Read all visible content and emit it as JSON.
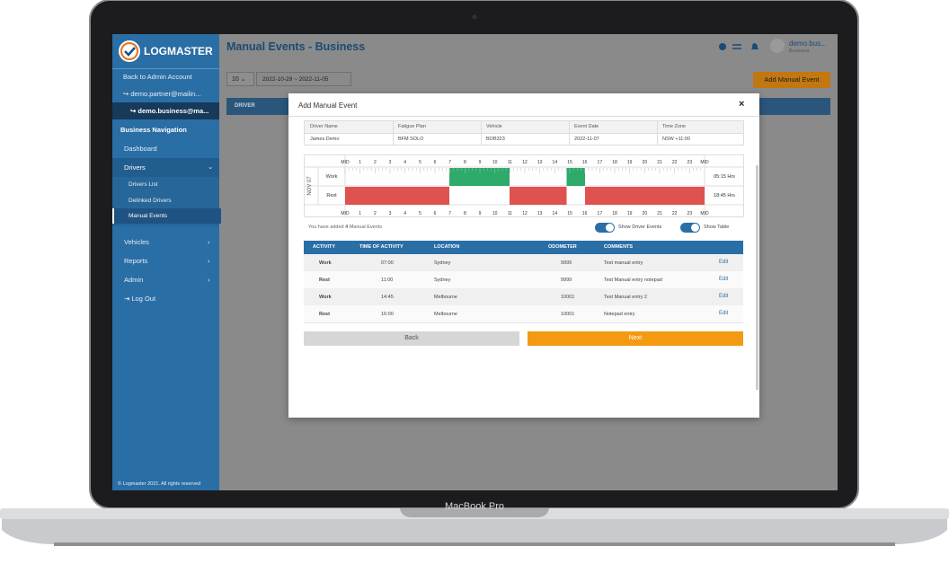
{
  "sidebar": {
    "logo": "LOGMASTER",
    "back": "Back to Admin Account",
    "accounts": [
      "demo.partner@mailin...",
      "demo.business@ma..."
    ],
    "section": "Business Navigation",
    "items": [
      "Dashboard",
      "Drivers",
      "Vehicles",
      "Reports",
      "Admin",
      "Log Out"
    ],
    "submenu": [
      "Drivers List",
      "Delinked Drivers",
      "Manual Events"
    ],
    "footer": "© Logmaster 2021. All rights reserved"
  },
  "header": {
    "title": "Manual Events - Business",
    "user": "demo.bus...",
    "role": "Business"
  },
  "toolbar": {
    "page_size": "10",
    "date_range": "2022-10-29 ~ 2022-11-05",
    "add_button": "Add Manual Event",
    "column": "DRIVER"
  },
  "modal": {
    "title": "Add Manual Event",
    "info": {
      "headers": [
        "Driver Name",
        "Fatigue Plan",
        "Vehicle",
        "Event Date",
        "Time Zone"
      ],
      "values": [
        "James Demo",
        "BFM SOLO",
        "BOB323",
        "2022-11-07",
        "NSW +11:00"
      ]
    },
    "graph": {
      "date": "NOV 07",
      "hours": [
        "MID",
        "1",
        "2",
        "3",
        "4",
        "5",
        "6",
        "7",
        "8",
        "9",
        "10",
        "11",
        "12",
        "13",
        "14",
        "15",
        "16",
        "17",
        "18",
        "19",
        "20",
        "21",
        "22",
        "23",
        "MID"
      ],
      "rows": [
        {
          "label": "Work",
          "total": "05:15 Hrs"
        },
        {
          "label": "Rest",
          "total": "18:45 Hrs"
        }
      ]
    },
    "summary": {
      "prefix": "You have added",
      "count": 4,
      "suffix": "Manual Events"
    },
    "toggles": [
      "Show Driver Events",
      "Show Table"
    ],
    "table": {
      "headers": [
        "ACTIVITY",
        "TIME OF ACTIVITY",
        "LOCATION",
        "ODOMETER",
        "COMMENTS"
      ],
      "rows": [
        [
          "Work",
          "07:00",
          "Sydney",
          9999,
          "Test manual entry"
        ],
        [
          "Rest",
          "11:00",
          "Sydney",
          9999,
          "Test Manual entry notepad"
        ],
        [
          "Work",
          "14:45",
          "Melbourne",
          10001,
          "Test Manual entry 2"
        ],
        [
          "Rest",
          "16:00",
          "Melbourne",
          10001,
          "Notepad entry"
        ]
      ],
      "action": "Edit"
    },
    "buttons": {
      "back": "Back",
      "next": "Next"
    }
  },
  "device": "MacBook Pro"
}
